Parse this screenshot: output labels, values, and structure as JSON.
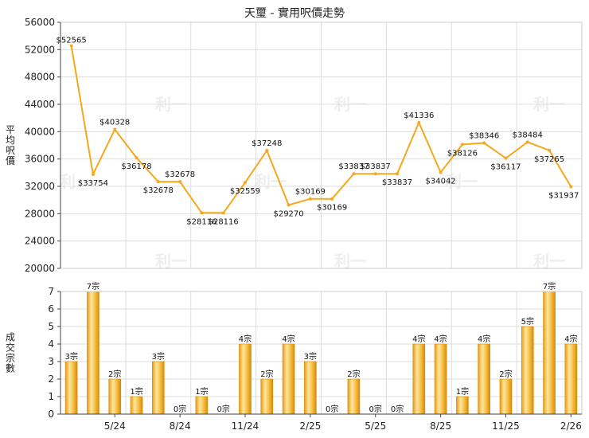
{
  "title": "天璽 - 實用呎價走勢",
  "chart_data": [
    {
      "type": "line",
      "title": "天璽 - 實用呎價走勢",
      "ylabel": "平均呎價",
      "ylim": [
        20000,
        56000
      ],
      "yticks": [
        20000,
        24000,
        28000,
        32000,
        36000,
        40000,
        44000,
        48000,
        52000,
        56000
      ],
      "grid": true,
      "color": "#f5a81c",
      "series": [
        {
          "values": [
            52565,
            33754,
            40328,
            36178,
            32678,
            32678,
            28116,
            28116,
            32559,
            37248,
            29270,
            30169,
            30169,
            33837,
            33837,
            33837,
            41336,
            34042,
            38126,
            38346,
            36117,
            38484,
            37265,
            31937
          ],
          "labels": [
            "$52565",
            "$33754",
            "$40328",
            "$36178",
            "$32678",
            "$32678",
            "$28116",
            "$28116",
            "$32559",
            "$37248",
            "$29270",
            "$30169",
            "$30169",
            "$33837",
            "$33837",
            "$33837",
            "$41336",
            "$34042",
            "$38126",
            "$38346",
            "$36117",
            "$38484",
            "$37265",
            "$31937"
          ]
        }
      ]
    },
    {
      "type": "bar",
      "ylabel": "成交宗數",
      "ylim": [
        0,
        7
      ],
      "yticks": [
        "0",
        "1",
        "2",
        "3",
        "4",
        "5",
        "6",
        "7"
      ],
      "grid": true,
      "categories": [
        "",
        "",
        "5/24",
        "",
        "",
        "8/24",
        "",
        "",
        "11/24",
        "",
        "",
        "2/25",
        "",
        "",
        "5/25",
        "",
        "",
        "8/25",
        "",
        "",
        "11/25",
        "",
        "",
        "2/26"
      ],
      "values": [
        3,
        7,
        2,
        1,
        3,
        0,
        1,
        0,
        4,
        2,
        4,
        3,
        0,
        2,
        0,
        0,
        4,
        4,
        1,
        4,
        2,
        5,
        7,
        4
      ],
      "labels": [
        "3宗",
        "7宗",
        "2宗",
        "1宗",
        "3宗",
        "0宗",
        "1宗",
        "0宗",
        "4宗",
        "2宗",
        "4宗",
        "3宗",
        "0宗",
        "2宗",
        "0宗",
        "0宗",
        "4宗",
        "4宗",
        "1宗",
        "4宗",
        "2宗",
        "5宗",
        "7宗",
        "4宗"
      ]
    }
  ],
  "watermark": "利一"
}
